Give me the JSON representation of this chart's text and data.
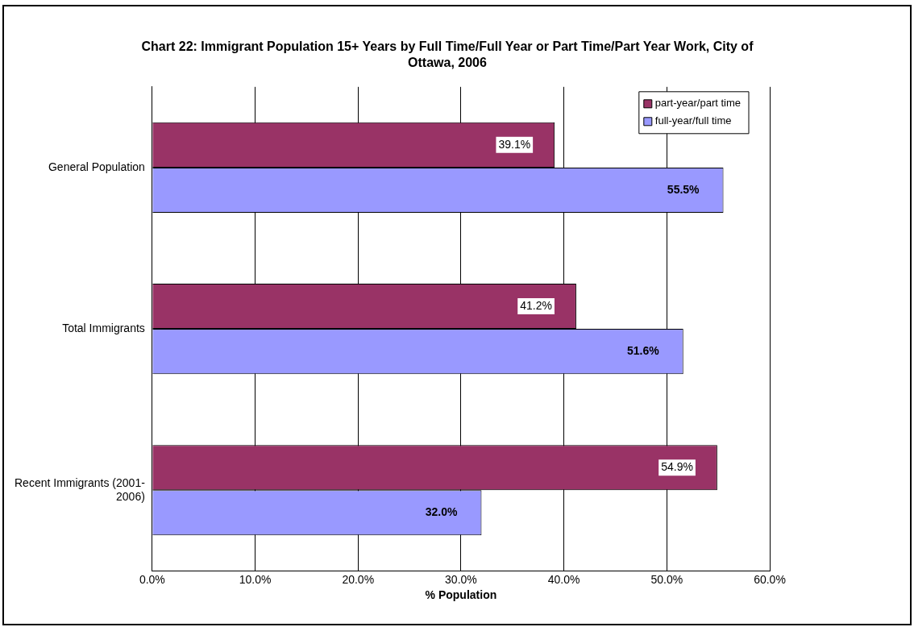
{
  "chart_data": {
    "type": "bar",
    "orientation": "horizontal",
    "title": "Chart 22: Immigrant Population 15+ Years by Full Time/Full Year or Part Time/Part Year Work, City of Ottawa, 2006",
    "xlabel": "% Population",
    "categories": [
      "General Population",
      "Total Immigrants",
      "Recent Immigrants (2001-2006)"
    ],
    "series": [
      {
        "name": "part-year/part time",
        "color": "#993366",
        "values": [
          39.1,
          41.2,
          54.9
        ],
        "value_labels": [
          "39.1%",
          "41.2%",
          "54.9%"
        ]
      },
      {
        "name": "full-year/full time",
        "color": "#9999ff",
        "values": [
          55.5,
          51.6,
          32.0
        ],
        "value_labels": [
          "55.5%",
          "51.6%",
          "32.0%"
        ]
      }
    ],
    "xlim": [
      0,
      60
    ],
    "xticks": [
      {
        "value": 0,
        "label": "0.0%"
      },
      {
        "value": 10,
        "label": "10.0%"
      },
      {
        "value": 20,
        "label": "20.0%"
      },
      {
        "value": 30,
        "label": "30.0%"
      },
      {
        "value": 40,
        "label": "40.0%"
      },
      {
        "value": 50,
        "label": "50.0%"
      },
      {
        "value": 60,
        "label": "60.0%"
      }
    ],
    "grid": "x",
    "legend": "top right"
  }
}
